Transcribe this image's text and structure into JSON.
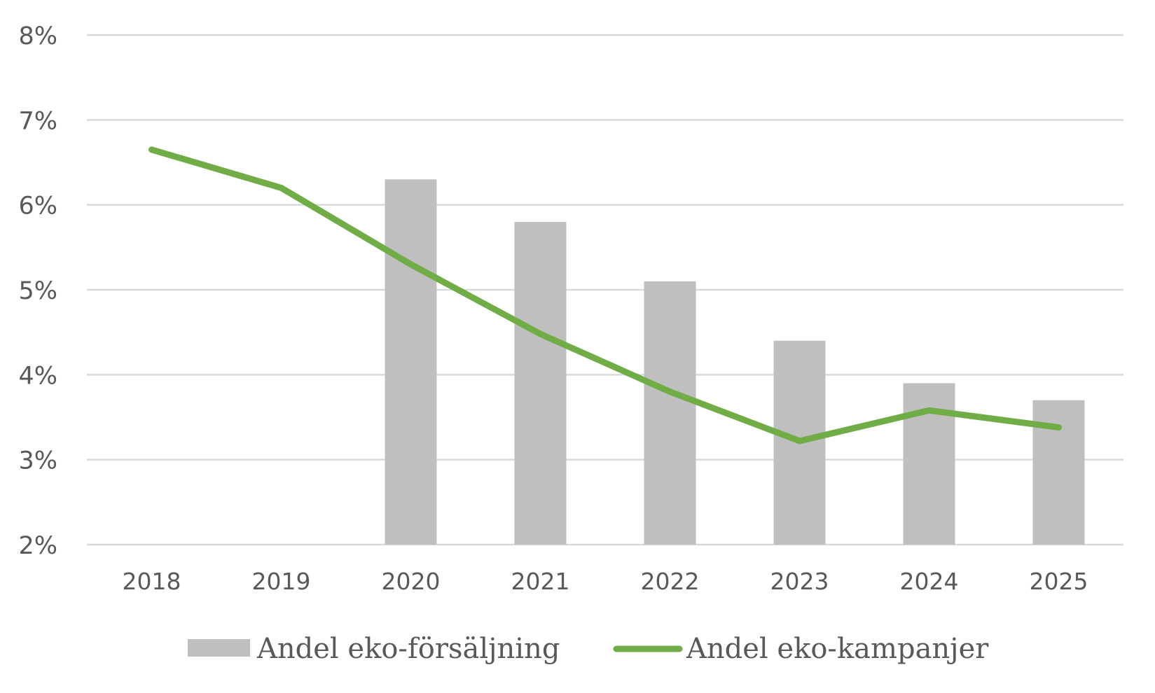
{
  "chart_data": {
    "type": "bar",
    "title": "",
    "xlabel": "",
    "ylabel": "",
    "categories": [
      "2018",
      "2019",
      "2020",
      "2021",
      "2022",
      "2023",
      "2024",
      "2025"
    ],
    "ylim": [
      2,
      8
    ],
    "yticks": [
      "2%",
      "3%",
      "4%",
      "5%",
      "6%",
      "7%",
      "8%"
    ],
    "grid": true,
    "legend_position": "bottom",
    "series": [
      {
        "name": "Andel eko-försäljning",
        "type": "bar",
        "color": "#bfbfbf",
        "values": [
          null,
          null,
          6.3,
          5.8,
          5.1,
          4.4,
          3.9,
          3.7
        ]
      },
      {
        "name": "Andel eko-kampanjer",
        "type": "line",
        "color": "#70ad47",
        "values": [
          6.65,
          6.2,
          5.3,
          4.48,
          3.8,
          3.22,
          3.58,
          3.38
        ]
      }
    ]
  }
}
